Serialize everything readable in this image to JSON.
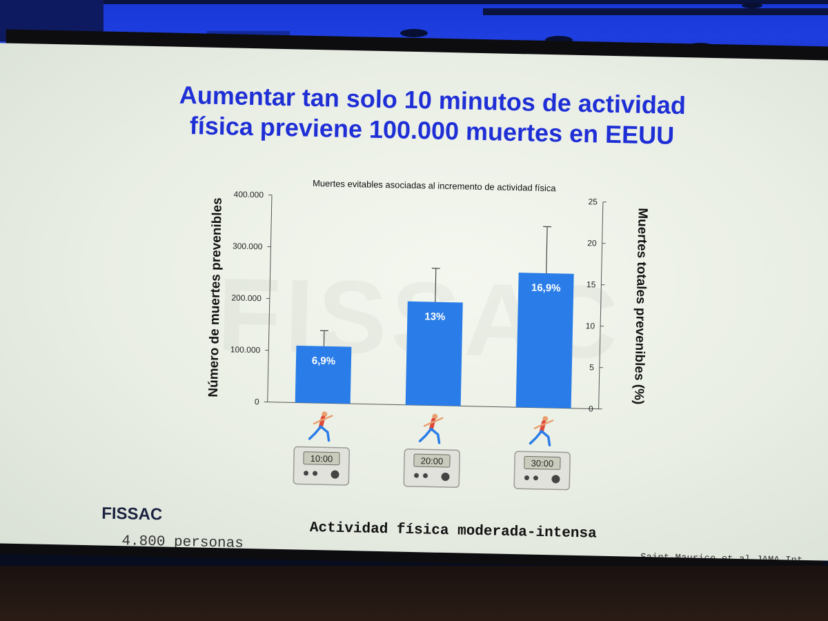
{
  "slide": {
    "title_line1": "Aumentar tan solo 10 minutos de actividad",
    "title_line2": "física previene 100.000 muertes en EEUU",
    "watermark": "FISSAC",
    "brand": "FISSAC",
    "sample": "4.800 personas",
    "citation": "Saint-Maurice et al JAMA Int"
  },
  "colors": {
    "title": "#1f2fd6",
    "bar": "#2a7de8",
    "background": "#eef2ea"
  },
  "chart_data": {
    "type": "bar",
    "title": "Muertes evitables asociadas al incremento de actividad física",
    "xlabel": "Actividad física moderada-intensa",
    "ylabel": "Número de muertes prevenibles",
    "y2label": "Muertes totales prevenibles (%)",
    "categories": [
      "10:00",
      "20:00",
      "30:00"
    ],
    "category_icons": [
      "runner-icon",
      "timer-icon"
    ],
    "series": [
      {
        "values": [
          110000,
          200000,
          260000
        ],
        "error_upper": [
          140000,
          265000,
          350000
        ],
        "data_labels": [
          "6,9%",
          "13%",
          "16,9%"
        ]
      }
    ],
    "ylim": [
      0,
      400000
    ],
    "yticks": [
      "0",
      "100.000",
      "200.000",
      "300.000",
      "400.000"
    ],
    "y2lim": [
      0,
      25
    ],
    "y2ticks": [
      "0",
      "5",
      "10",
      "15",
      "20",
      "25"
    ],
    "grid": false,
    "legend": "none"
  }
}
